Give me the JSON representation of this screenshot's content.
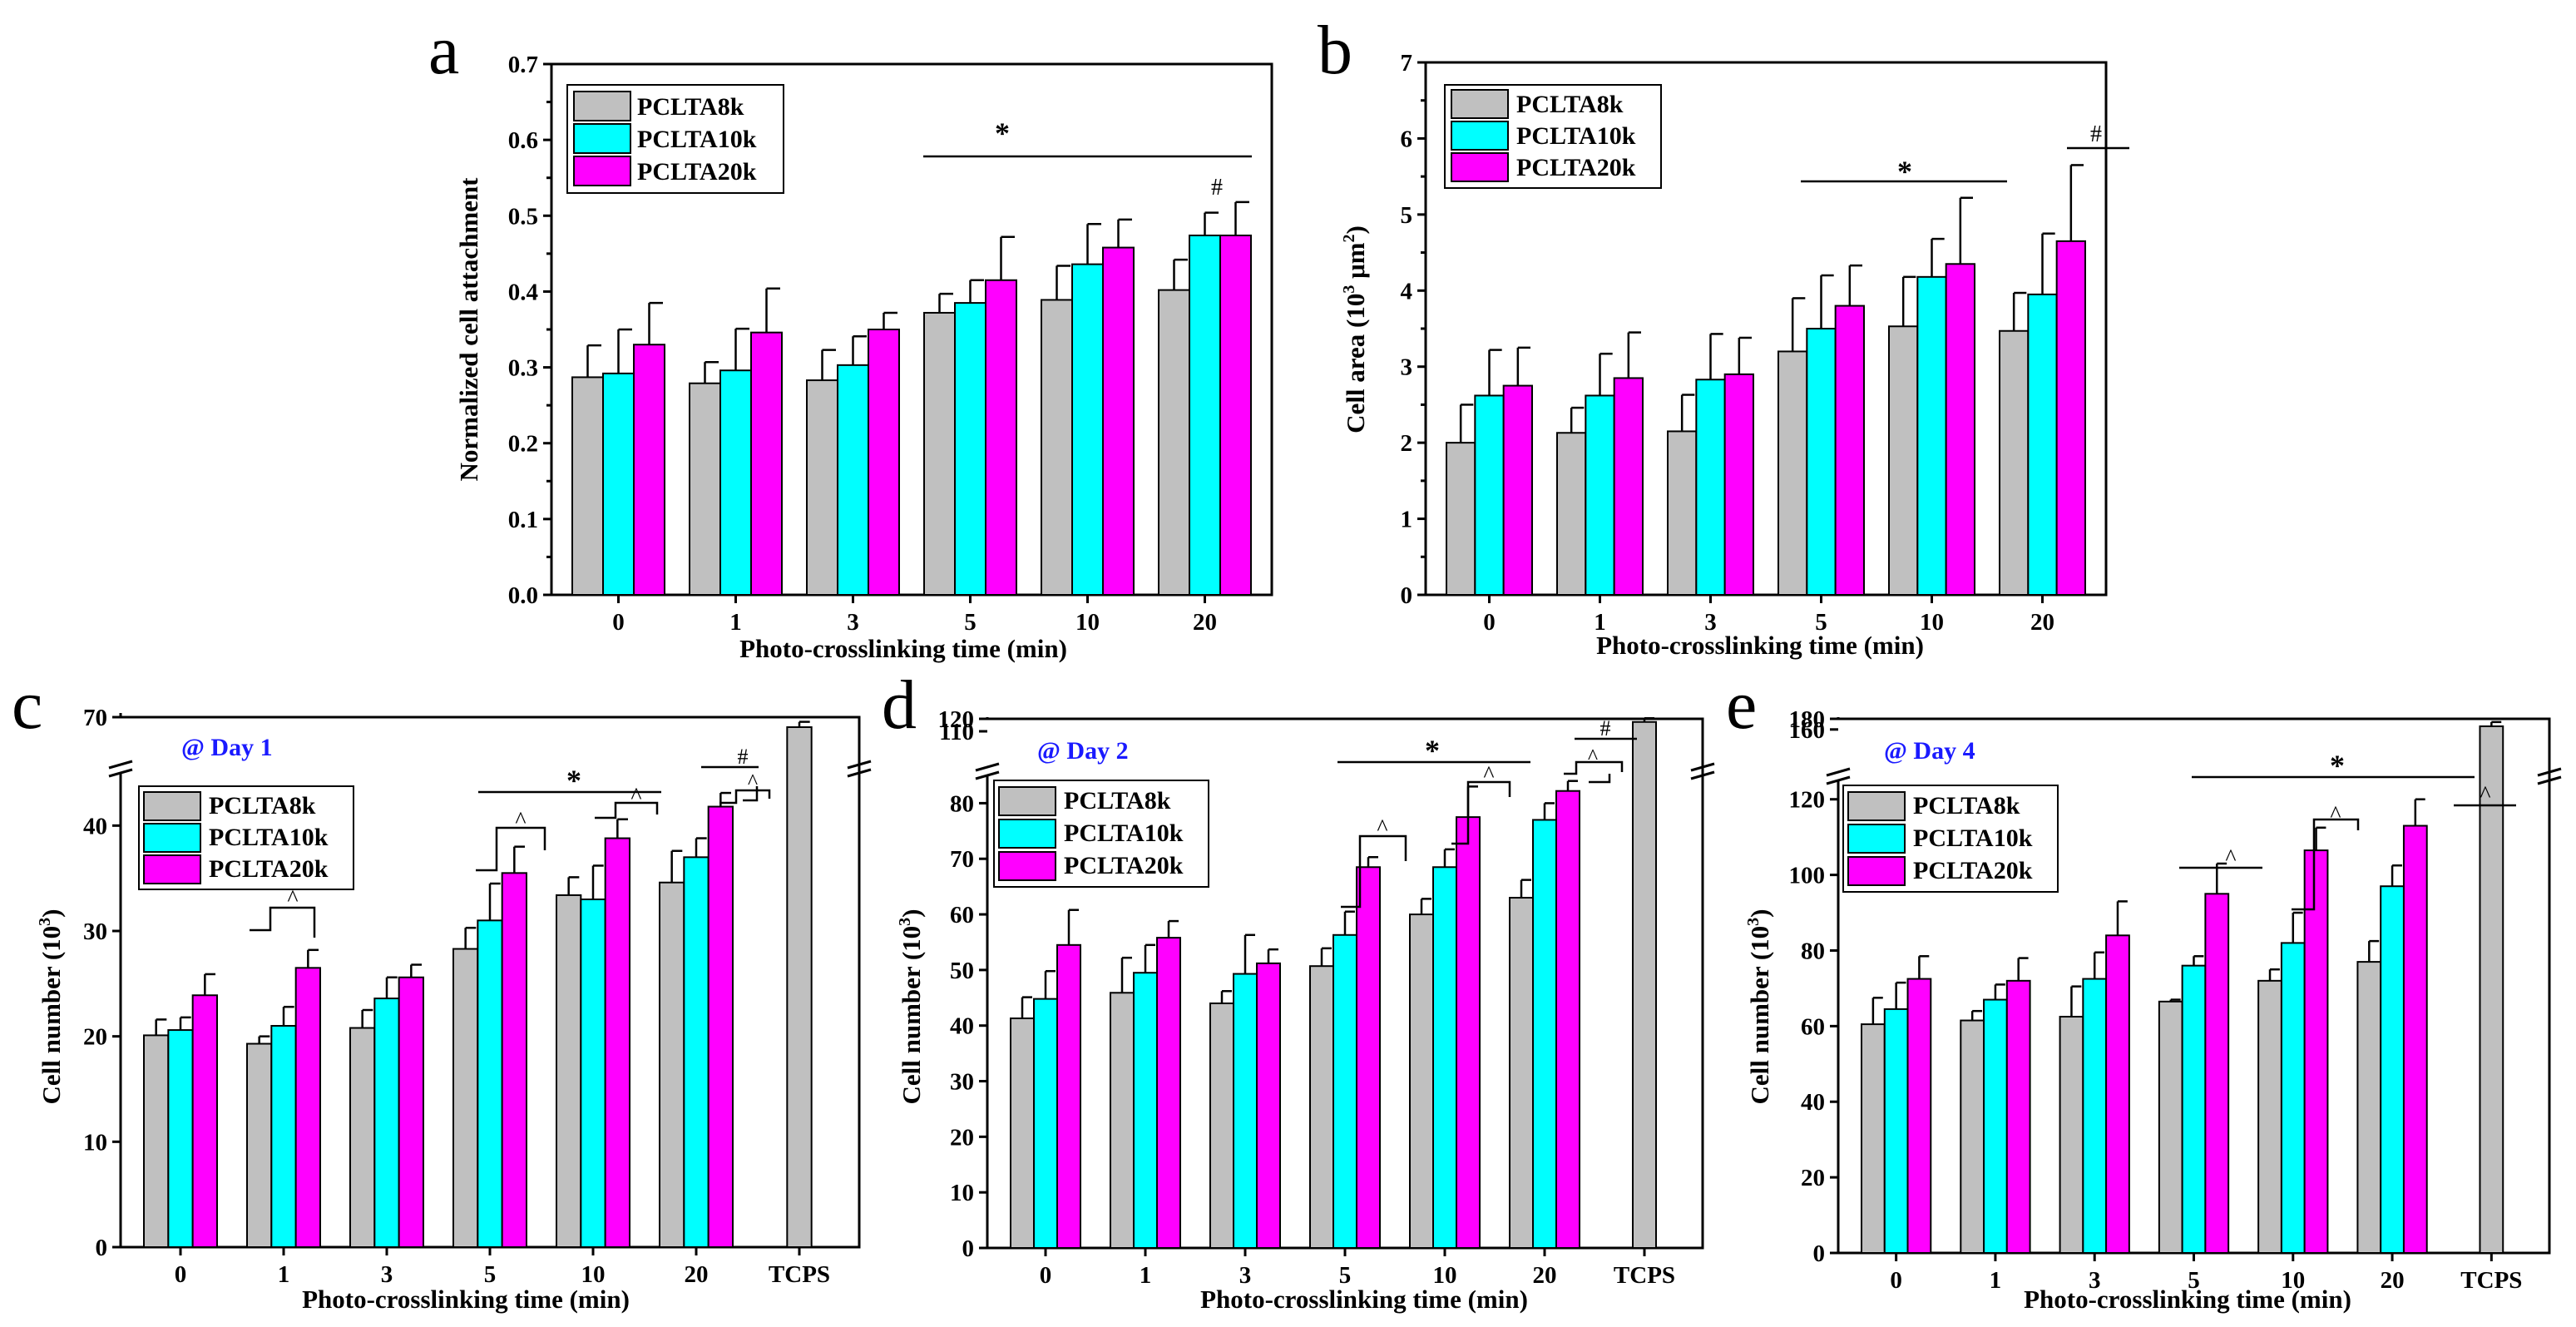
{
  "colors": {
    "PCLTA8k": "#c0c0c0",
    "PCLTA10k": "#00ffff",
    "PCLTA20k": "#ff00ff",
    "day_label": "#1a1aff"
  },
  "chart_data": [
    {
      "panel": "a",
      "type": "bar",
      "title": "",
      "xlabel": "Photo-crosslinking time (min)",
      "ylabel": "Normalized cell attachment",
      "categories": [
        "0",
        "1",
        "3",
        "5",
        "10",
        "20"
      ],
      "ylim": [
        0,
        0.7
      ],
      "yticks": [
        "0.0",
        "0.1",
        "0.2",
        "0.3",
        "0.4",
        "0.5",
        "0.6",
        "0.7"
      ],
      "series": [
        {
          "name": "PCLTA8k",
          "values": [
            0.287,
            0.279,
            0.283,
            0.372,
            0.389,
            0.402
          ],
          "errors": [
            0.042,
            0.028,
            0.04,
            0.025,
            0.045,
            0.04
          ]
        },
        {
          "name": "PCLTA10k",
          "values": [
            0.292,
            0.296,
            0.303,
            0.385,
            0.436,
            0.474
          ],
          "errors": [
            0.058,
            0.055,
            0.038,
            0.03,
            0.053,
            0.03
          ]
        },
        {
          "name": "PCLTA20k",
          "values": [
            0.33,
            0.346,
            0.35,
            0.415,
            0.458,
            0.474
          ],
          "errors": [
            0.055,
            0.058,
            0.022,
            0.057,
            0.037,
            0.044
          ]
        }
      ],
      "annotations": [
        "*",
        "#"
      ]
    },
    {
      "panel": "b",
      "type": "bar",
      "title": "",
      "xlabel": "Photo-crosslinking time (min)",
      "ylabel": "Cell area (10^3 μm^2)",
      "categories": [
        "0",
        "1",
        "3",
        "5",
        "10",
        "20"
      ],
      "ylim": [
        0,
        7
      ],
      "yticks": [
        "0",
        "1",
        "2",
        "3",
        "4",
        "5",
        "6",
        "7"
      ],
      "series": [
        {
          "name": "PCLTA8k",
          "values": [
            2.0,
            2.13,
            2.15,
            3.2,
            3.53,
            3.47
          ],
          "errors": [
            0.5,
            0.33,
            0.48,
            0.7,
            0.65,
            0.5
          ]
        },
        {
          "name": "PCLTA10k",
          "values": [
            2.62,
            2.62,
            2.83,
            3.5,
            4.18,
            3.95
          ],
          "errors": [
            0.6,
            0.55,
            0.6,
            0.7,
            0.5,
            0.8
          ]
        },
        {
          "name": "PCLTA20k",
          "values": [
            2.75,
            2.85,
            2.9,
            3.8,
            4.35,
            4.65
          ],
          "errors": [
            0.5,
            0.6,
            0.48,
            0.53,
            0.87,
            1.0
          ]
        }
      ],
      "annotations": [
        "*",
        "#"
      ]
    },
    {
      "panel": "c",
      "type": "bar",
      "title": "@ Day 1",
      "xlabel": "Photo-crosslinking time (min)",
      "ylabel": "Cell number (10^3)",
      "categories": [
        "0",
        "1",
        "3",
        "5",
        "10",
        "20",
        "TCPS"
      ],
      "ylim": [
        0,
        70
      ],
      "axis_break": [
        45,
        68
      ],
      "yticks": [
        "0",
        "10",
        "20",
        "30",
        "40",
        "70"
      ],
      "series": [
        {
          "name": "PCLTA8k",
          "values": [
            20.1,
            19.3,
            20.8,
            28.3,
            33.4,
            34.6,
            68.5
          ],
          "errors": [
            1.5,
            0.7,
            1.7,
            2.0,
            1.7,
            3.0,
            0.8
          ]
        },
        {
          "name": "PCLTA10k",
          "values": [
            20.6,
            21.0,
            23.6,
            31.0,
            33.0,
            37.0,
            null
          ],
          "errors": [
            1.2,
            1.8,
            2.0,
            3.5,
            3.2,
            1.8,
            null
          ]
        },
        {
          "name": "PCLTA20k",
          "values": [
            23.9,
            26.5,
            25.6,
            35.5,
            38.8,
            41.8,
            null
          ],
          "errors": [
            2.0,
            1.7,
            1.2,
            2.5,
            1.8,
            1.3,
            null
          ]
        }
      ],
      "annotations": [
        "*",
        "#",
        "^"
      ]
    },
    {
      "panel": "d",
      "type": "bar",
      "title": "@ Day 2",
      "xlabel": "Photo-crosslinking time (min)",
      "ylabel": "Cell number (10^3)",
      "categories": [
        "0",
        "1",
        "3",
        "5",
        "10",
        "20",
        "TCPS"
      ],
      "ylim": [
        0,
        120
      ],
      "axis_break": [
        85,
        108
      ],
      "yticks": [
        "0",
        "10",
        "20",
        "30",
        "40",
        "50",
        "60",
        "70",
        "80",
        "110",
        "120"
      ],
      "series": [
        {
          "name": "PCLTA8k",
          "values": [
            41.3,
            45.9,
            44.0,
            50.7,
            60.0,
            63.0,
            117.5
          ],
          "errors": [
            3.8,
            6.3,
            2.2,
            3.2,
            2.8,
            3.2,
            3.0
          ]
        },
        {
          "name": "PCLTA10k",
          "values": [
            44.8,
            49.5,
            49.3,
            56.3,
            68.5,
            77.0,
            null
          ],
          "errors": [
            5.0,
            5.0,
            7.0,
            4.2,
            3.2,
            3.0,
            null
          ]
        },
        {
          "name": "PCLTA20k",
          "values": [
            54.5,
            55.8,
            51.2,
            68.5,
            77.5,
            82.2,
            null
          ],
          "errors": [
            6.3,
            3.0,
            2.5,
            1.8,
            5.5,
            1.8,
            null
          ]
        }
      ],
      "annotations": [
        "*",
        "#",
        "^"
      ]
    },
    {
      "panel": "e",
      "type": "bar",
      "title": "@ Day 4",
      "xlabel": "Photo-crosslinking time (min)",
      "ylabel": "Cell number (10^3)",
      "categories": [
        "0",
        "1",
        "3",
        "5",
        "10",
        "20",
        "TCPS"
      ],
      "ylim": [
        0,
        180
      ],
      "axis_break": [
        125,
        155
      ],
      "yticks": [
        "0",
        "20",
        "40",
        "60",
        "80",
        "100",
        "120",
        "160",
        "180"
      ],
      "series": [
        {
          "name": "PCLTA8k",
          "values": [
            60.5,
            61.5,
            62.5,
            66.5,
            72.0,
            77.0,
            166.0
          ],
          "errors": [
            7.0,
            2.5,
            8.0,
            0.5,
            3.0,
            5.5,
            8.0
          ]
        },
        {
          "name": "PCLTA10k",
          "values": [
            64.5,
            67.0,
            72.5,
            76.0,
            82.0,
            97.0,
            null
          ],
          "errors": [
            7.0,
            4.0,
            7.0,
            2.5,
            8.0,
            5.5,
            null
          ]
        },
        {
          "name": "PCLTA20k",
          "values": [
            72.5,
            72.0,
            84.0,
            95.0,
            106.5,
            113.0,
            null
          ],
          "errors": [
            6.0,
            6.0,
            9.0,
            8.0,
            6.0,
            7.0,
            null
          ]
        }
      ],
      "annotations": [
        "*",
        "^"
      ]
    }
  ],
  "panels": {
    "a": {
      "letter": "a",
      "xlabel": "Photo-crosslinking time (min)",
      "ylabel": "Normalized cell attachment",
      "legend": [
        "PCLTA8k",
        "PCLTA10k",
        "PCLTA20k"
      ],
      "star": "*",
      "hash": "#"
    },
    "b": {
      "letter": "b",
      "xlabel": "Photo-crosslinking time (min)",
      "ylabel_pre": "Cell area (10",
      "ylabel_sup1": "3",
      "ylabel_mid": " μm",
      "ylabel_sup2": "2",
      "ylabel_post": ")",
      "legend": [
        "PCLTA8k",
        "PCLTA10k",
        "PCLTA20k"
      ],
      "star": "*",
      "hash": "#"
    },
    "c": {
      "letter": "c",
      "xlabel": "Photo-crosslinking time (min)",
      "ylabel_pre": "Cell number (10",
      "ylabel_sup": "3",
      "ylabel_post": ")",
      "day": "@ Day 1",
      "legend": [
        "PCLTA8k",
        "PCLTA10k",
        "PCLTA20k"
      ],
      "star": "*",
      "hash": "#",
      "caret": "^"
    },
    "d": {
      "letter": "d",
      "xlabel": "Photo-crosslinking time (min)",
      "ylabel_pre": "Cell number (10",
      "ylabel_sup": "3",
      "ylabel_post": ")",
      "day": "@ Day 2",
      "legend": [
        "PCLTA8k",
        "PCLTA10k",
        "PCLTA20k"
      ],
      "star": "*",
      "hash": "#",
      "caret": "^"
    },
    "e": {
      "letter": "e",
      "xlabel": "Photo-crosslinking time (min)",
      "ylabel_pre": "Cell number (10",
      "ylabel_sup": "3",
      "ylabel_post": ")",
      "day": "@ Day 4",
      "legend": [
        "PCLTA8k",
        "PCLTA10k",
        "PCLTA20k"
      ],
      "star": "*",
      "caret": "^"
    }
  }
}
